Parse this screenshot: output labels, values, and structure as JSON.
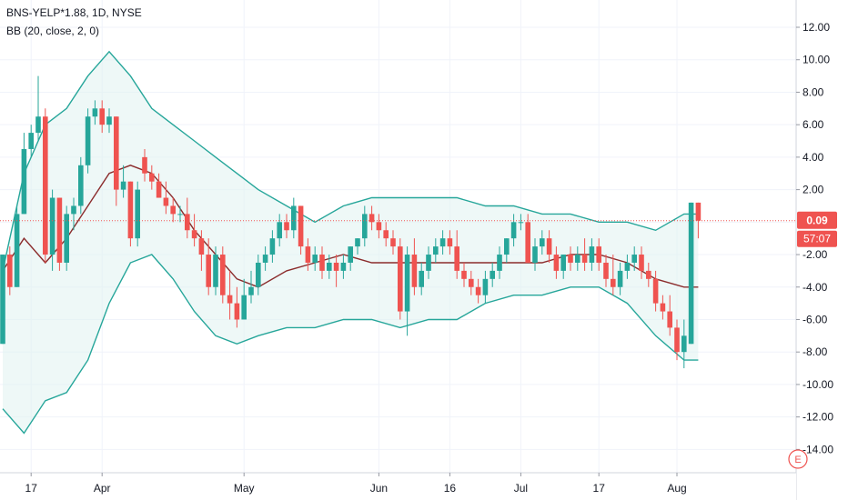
{
  "legend": {
    "symbol_line": "BNS-YELP*1.88, 1D, NYSE",
    "indicator_line": "BB (20, close, 2, 0)"
  },
  "badges": {
    "price": "0.09",
    "countdown": "57:07",
    "bottom_icon": "E"
  },
  "chart_data": {
    "type": "candlestick",
    "title": "BNS-YELP*1.88, 1D, NYSE",
    "indicator": "BB (20, close, 2, 0)",
    "y_ticks": [
      "12.00",
      "10.00",
      "8.00",
      "6.00",
      "4.00",
      "2.00",
      "-2.00",
      "-4.00",
      "-6.00",
      "-8.00",
      "-10.00",
      "-12.00",
      "-14.00"
    ],
    "y_tick_values": [
      12,
      10,
      8,
      6,
      4,
      2,
      -2,
      -4,
      -6,
      -8,
      -10,
      -12,
      -14
    ],
    "ylim": [
      -15.6,
      13.4
    ],
    "x_ticks": [
      {
        "label": "17",
        "index": 4
      },
      {
        "label": "Apr",
        "index": 14
      },
      {
        "label": "May",
        "index": 34
      },
      {
        "label": "Jun",
        "index": 53
      },
      {
        "label": "16",
        "index": 63
      },
      {
        "label": "Jul",
        "index": 73
      },
      {
        "label": "17",
        "index": 84
      },
      {
        "label": "Aug",
        "index": 95
      }
    ],
    "last_price": 0.09,
    "candles": [
      {
        "o": -7.5,
        "h": -2.0,
        "l": -7.5,
        "c": -2.0
      },
      {
        "o": -2.0,
        "h": -1.5,
        "l": -4.5,
        "c": -4.0
      },
      {
        "o": -4.0,
        "h": 1.0,
        "l": -4.0,
        "c": 0.5
      },
      {
        "o": 0.5,
        "h": 5.5,
        "l": 0.5,
        "c": 4.5
      },
      {
        "o": 4.5,
        "h": 6.0,
        "l": 4.0,
        "c": 5.5
      },
      {
        "o": 5.5,
        "h": 9.0,
        "l": 5.0,
        "c": 6.5
      },
      {
        "o": 6.5,
        "h": 7.0,
        "l": -2.5,
        "c": -2.0
      },
      {
        "o": -2.0,
        "h": 2.0,
        "l": -3.0,
        "c": 1.5
      },
      {
        "o": 1.5,
        "h": 1.5,
        "l": -3.0,
        "c": -2.5
      },
      {
        "o": -2.5,
        "h": 1.0,
        "l": -3.0,
        "c": 0.5
      },
      {
        "o": 0.5,
        "h": 1.5,
        "l": -0.5,
        "c": 1.0
      },
      {
        "o": 1.0,
        "h": 4.0,
        "l": 0.5,
        "c": 3.5
      },
      {
        "o": 3.5,
        "h": 7.0,
        "l": 3.0,
        "c": 6.5
      },
      {
        "o": 6.5,
        "h": 7.5,
        "l": 6.0,
        "c": 7.0
      },
      {
        "o": 7.0,
        "h": 7.5,
        "l": 5.5,
        "c": 6.0
      },
      {
        "o": 6.0,
        "h": 7.0,
        "l": 5.5,
        "c": 6.5
      },
      {
        "o": 6.5,
        "h": 6.5,
        "l": 1.0,
        "c": 2.0
      },
      {
        "o": 2.0,
        "h": 3.5,
        "l": 1.5,
        "c": 2.5
      },
      {
        "o": 2.5,
        "h": 2.5,
        "l": -1.5,
        "c": -1.0
      },
      {
        "o": -1.0,
        "h": 2.5,
        "l": -1.5,
        "c": 2.0
      },
      {
        "o": 4.0,
        "h": 4.5,
        "l": 2.5,
        "c": 3.0
      },
      {
        "o": 3.0,
        "h": 3.5,
        "l": 2.0,
        "c": 2.5
      },
      {
        "o": 2.5,
        "h": 3.0,
        "l": 1.5,
        "c": 1.5
      },
      {
        "o": 1.5,
        "h": 2.5,
        "l": 0.5,
        "c": 1.0
      },
      {
        "o": 1.0,
        "h": 1.5,
        "l": 0.0,
        "c": 0.5
      },
      {
        "o": 0.5,
        "h": 1.0,
        "l": 0.0,
        "c": 0.5
      },
      {
        "o": 0.5,
        "h": 1.5,
        "l": -1.0,
        "c": -0.5
      },
      {
        "o": -0.5,
        "h": 0.5,
        "l": -1.5,
        "c": -1.0
      },
      {
        "o": -1.0,
        "h": -0.5,
        "l": -3.0,
        "c": -2.0
      },
      {
        "o": -2.0,
        "h": -1.0,
        "l": -4.5,
        "c": -4.0
      },
      {
        "o": -4.0,
        "h": -1.5,
        "l": -4.5,
        "c": -2.0
      },
      {
        "o": -2.0,
        "h": -1.5,
        "l": -5.0,
        "c": -4.5
      },
      {
        "o": -4.5,
        "h": -3.0,
        "l": -6.0,
        "c": -5.0
      },
      {
        "o": -5.0,
        "h": -4.0,
        "l": -6.5,
        "c": -6.0
      },
      {
        "o": -6.0,
        "h": -3.5,
        "l": -6.0,
        "c": -4.5
      },
      {
        "o": -4.5,
        "h": -3.0,
        "l": -5.0,
        "c": -4.0
      },
      {
        "o": -4.0,
        "h": -2.0,
        "l": -4.5,
        "c": -2.5
      },
      {
        "o": -2.5,
        "h": -1.5,
        "l": -3.0,
        "c": -2.0
      },
      {
        "o": -2.0,
        "h": -0.5,
        "l": -2.5,
        "c": -1.0
      },
      {
        "o": -1.0,
        "h": 0.5,
        "l": -1.5,
        "c": 0.0
      },
      {
        "o": 0.0,
        "h": 0.5,
        "l": -1.0,
        "c": -0.5
      },
      {
        "o": -0.5,
        "h": 1.5,
        "l": -1.0,
        "c": 1.0
      },
      {
        "o": 1.0,
        "h": 1.0,
        "l": -2.0,
        "c": -1.5
      },
      {
        "o": -1.5,
        "h": -1.0,
        "l": -3.0,
        "c": -2.5
      },
      {
        "o": -2.5,
        "h": -1.5,
        "l": -3.0,
        "c": -2.0
      },
      {
        "o": -2.0,
        "h": -1.5,
        "l": -3.5,
        "c": -3.0
      },
      {
        "o": -3.0,
        "h": -2.0,
        "l": -3.5,
        "c": -2.5
      },
      {
        "o": -2.5,
        "h": -2.0,
        "l": -4.0,
        "c": -3.0
      },
      {
        "o": -3.0,
        "h": -2.0,
        "l": -3.5,
        "c": -2.5
      },
      {
        "o": -2.5,
        "h": -1.5,
        "l": -3.0,
        "c": -1.5
      },
      {
        "o": -1.5,
        "h": -1.0,
        "l": -2.0,
        "c": -1.0
      },
      {
        "o": -1.0,
        "h": 1.0,
        "l": -1.5,
        "c": 0.5
      },
      {
        "o": 0.5,
        "h": 1.0,
        "l": -0.5,
        "c": 0.0
      },
      {
        "o": 0.0,
        "h": 0.5,
        "l": -1.0,
        "c": -0.5
      },
      {
        "o": -0.5,
        "h": 0.0,
        "l": -1.5,
        "c": -1.0
      },
      {
        "o": -1.0,
        "h": -0.5,
        "l": -2.0,
        "c": -1.5
      },
      {
        "o": -1.5,
        "h": -1.0,
        "l": -6.0,
        "c": -5.5
      },
      {
        "o": -5.5,
        "h": -1.5,
        "l": -7.0,
        "c": -2.0
      },
      {
        "o": -2.0,
        "h": -1.0,
        "l": -4.5,
        "c": -4.0
      },
      {
        "o": -4.0,
        "h": -2.5,
        "l": -4.5,
        "c": -3.0
      },
      {
        "o": -3.0,
        "h": -1.5,
        "l": -3.5,
        "c": -2.0
      },
      {
        "o": -2.0,
        "h": -1.0,
        "l": -2.5,
        "c": -1.5
      },
      {
        "o": -1.5,
        "h": -0.5,
        "l": -2.0,
        "c": -1.0
      },
      {
        "o": -1.0,
        "h": -0.5,
        "l": -2.0,
        "c": -1.5
      },
      {
        "o": -1.5,
        "h": -0.5,
        "l": -3.5,
        "c": -3.0
      },
      {
        "o": -3.0,
        "h": -2.5,
        "l": -4.0,
        "c": -3.5
      },
      {
        "o": -3.5,
        "h": -3.0,
        "l": -4.5,
        "c": -4.0
      },
      {
        "o": -4.0,
        "h": -3.5,
        "l": -5.0,
        "c": -4.5
      },
      {
        "o": -4.5,
        "h": -3.0,
        "l": -5.0,
        "c": -3.5
      },
      {
        "o": -3.5,
        "h": -2.5,
        "l": -4.0,
        "c": -3.0
      },
      {
        "o": -3.0,
        "h": -1.5,
        "l": -3.5,
        "c": -2.0
      },
      {
        "o": -2.0,
        "h": -1.0,
        "l": -2.5,
        "c": -1.0
      },
      {
        "o": -1.0,
        "h": 0.5,
        "l": -1.5,
        "c": 0.0
      },
      {
        "o": 0.0,
        "h": 0.5,
        "l": -0.5,
        "c": 0.0
      },
      {
        "o": 0.0,
        "h": 0.5,
        "l": -2.5,
        "c": -2.5
      },
      {
        "o": -2.5,
        "h": -1.0,
        "l": -3.0,
        "c": -1.5
      },
      {
        "o": -1.5,
        "h": -0.5,
        "l": -2.0,
        "c": -1.0
      },
      {
        "o": -1.0,
        "h": -0.5,
        "l": -2.5,
        "c": -2.0
      },
      {
        "o": -2.0,
        "h": -1.5,
        "l": -3.5,
        "c": -3.0
      },
      {
        "o": -3.0,
        "h": -2.0,
        "l": -3.5,
        "c": -2.0
      },
      {
        "o": -2.0,
        "h": -1.5,
        "l": -3.0,
        "c": -2.5
      },
      {
        "o": -2.5,
        "h": -1.5,
        "l": -3.0,
        "c": -2.0
      },
      {
        "o": -2.0,
        "h": -1.0,
        "l": -3.0,
        "c": -2.5
      },
      {
        "o": -2.5,
        "h": -1.0,
        "l": -3.0,
        "c": -1.5
      },
      {
        "o": -1.5,
        "h": -1.0,
        "l": -3.0,
        "c": -2.5
      },
      {
        "o": -2.5,
        "h": -2.0,
        "l": -4.0,
        "c": -3.5
      },
      {
        "o": -3.5,
        "h": -2.0,
        "l": -4.5,
        "c": -4.0
      },
      {
        "o": -4.0,
        "h": -2.5,
        "l": -4.5,
        "c": -3.0
      },
      {
        "o": -3.0,
        "h": -2.0,
        "l": -3.5,
        "c": -2.5
      },
      {
        "o": -2.5,
        "h": -1.5,
        "l": -3.0,
        "c": -2.0
      },
      {
        "o": -2.0,
        "h": -1.5,
        "l": -3.5,
        "c": -3.0
      },
      {
        "o": -3.0,
        "h": -2.5,
        "l": -4.0,
        "c": -3.5
      },
      {
        "o": -3.5,
        "h": -3.0,
        "l": -5.5,
        "c": -5.0
      },
      {
        "o": -5.0,
        "h": -4.5,
        "l": -6.0,
        "c": -5.5
      },
      {
        "o": -5.5,
        "h": -4.5,
        "l": -7.0,
        "c": -6.5
      },
      {
        "o": -6.5,
        "h": -6.0,
        "l": -8.5,
        "c": -8.0
      },
      {
        "o": -8.0,
        "h": -6.0,
        "l": -9.0,
        "c": -7.0
      },
      {
        "o": -7.5,
        "h": 1.2,
        "l": -7.5,
        "c": 1.2
      },
      {
        "o": 1.2,
        "h": 1.2,
        "l": -1.0,
        "c": 0.09
      }
    ],
    "bollinger": {
      "basis_x": [
        0,
        3,
        6,
        9,
        12,
        15,
        18,
        21,
        24,
        27,
        30,
        33,
        36,
        40,
        44,
        48,
        52,
        56,
        60,
        64,
        68,
        72,
        76,
        80,
        84,
        88,
        92,
        96,
        98
      ],
      "basis": [
        -3,
        -1,
        -2.5,
        -1,
        1,
        3,
        3.5,
        3,
        1.5,
        -0.5,
        -2,
        -3.5,
        -4,
        -3,
        -2.5,
        -2,
        -2.5,
        -2.5,
        -2.5,
        -2.5,
        -2.5,
        -2.5,
        -2.5,
        -2,
        -2,
        -2.5,
        -3.5,
        -4,
        -4
      ],
      "upper_x": [
        0,
        3,
        6,
        9,
        12,
        15,
        18,
        21,
        24,
        27,
        30,
        33,
        36,
        40,
        44,
        48,
        52,
        56,
        60,
        64,
        68,
        72,
        76,
        80,
        84,
        88,
        92,
        96,
        98
      ],
      "upper": [
        -3,
        3,
        6,
        7,
        9,
        10.5,
        9,
        7,
        6,
        5,
        4,
        3,
        2,
        1,
        0,
        1,
        1.5,
        1.5,
        1.5,
        1.5,
        1,
        1,
        0.5,
        0.5,
        0,
        0,
        -0.5,
        0.5,
        0.5
      ],
      "lower_x": [
        0,
        3,
        6,
        9,
        12,
        15,
        18,
        21,
        24,
        27,
        30,
        33,
        36,
        40,
        44,
        48,
        52,
        56,
        60,
        64,
        68,
        72,
        76,
        80,
        84,
        88,
        92,
        96,
        98
      ],
      "lower": [
        -11.5,
        -13,
        -11,
        -10.5,
        -8.5,
        -5,
        -2.5,
        -2,
        -3.5,
        -5.5,
        -7,
        -7.5,
        -7,
        -6.5,
        -6.5,
        -6,
        -6,
        -6.5,
        -6,
        -6,
        -5,
        -4.5,
        -4.5,
        -4,
        -4,
        -5,
        -7,
        -8.5,
        -8.5
      ]
    }
  },
  "colors": {
    "up": "#26a69a",
    "down": "#ef5350",
    "basis": "#8b2c2c",
    "band": "#26a69a",
    "band_fill": "#e0f2f1",
    "grid": "#f0f3fa",
    "axis_text": "#131722",
    "price_line": "#ef5350"
  }
}
